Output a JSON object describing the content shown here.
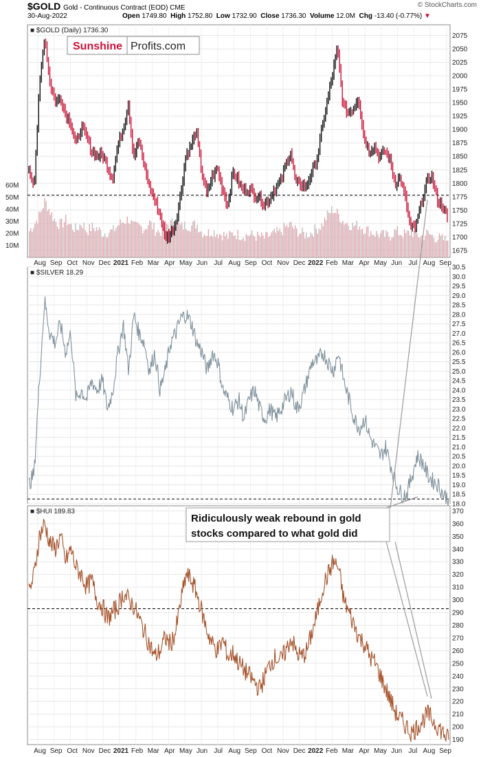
{
  "header": {
    "symbol": "$GOLD",
    "description": "Gold - Continuous Contract (EOD) CME",
    "date": "30-Aug-2022",
    "open_label": "Open",
    "open": "1749.80",
    "high_label": "High",
    "high": "1752.80",
    "low_label": "Low",
    "low": "1732.90",
    "close_label": "Close",
    "close": "1736.30",
    "volume_label": "Volume",
    "volume": "12.0M",
    "chg_label": "Chg",
    "chg": "-13.40 (-0.77%)",
    "credit": "© StockCharts.com"
  },
  "watermark": {
    "part1": "Sunshine",
    "part2": "Profits.com"
  },
  "annotation": {
    "line1": "Ridiculously weak rebound in gold",
    "line2": "stocks compared to what gold did"
  },
  "colors": {
    "up": "#111111",
    "down": "#cc1236",
    "silver": "#7f919c",
    "hui": "#a5522a",
    "volume": "#e3a3ab",
    "volume_alt": "#bdbdbd"
  },
  "chart_data": [
    {
      "type": "line",
      "name": "gold",
      "legend": "$GOLD (Daily) 1736.30",
      "ylim": [
        1662,
        2095
      ],
      "yticks": [
        2075,
        2050,
        2025,
        2000,
        1975,
        1950,
        1925,
        1900,
        1875,
        1850,
        1825,
        1800,
        1775,
        1750,
        1725,
        1700,
        1675
      ],
      "reference_line": 1778,
      "x_labels": [
        "Aug",
        "Sep",
        "Oct",
        "Nov",
        "Dec",
        "2021",
        "Feb",
        "Mar",
        "Apr",
        "May",
        "Jun",
        "Jul",
        "Aug",
        "Sep",
        "Oct",
        "Nov",
        "Dec",
        "2022",
        "Feb",
        "Mar",
        "Apr",
        "May",
        "Jun",
        "Jul",
        "Aug",
        "Sep"
      ],
      "values": [
        1820,
        1800,
        1975,
        2075,
        1990,
        1950,
        1960,
        1930,
        1915,
        1870,
        1905,
        1885,
        1860,
        1850,
        1855,
        1830,
        1810,
        1870,
        1900,
        1950,
        1850,
        1880,
        1835,
        1795,
        1770,
        1745,
        1700,
        1705,
        1725,
        1780,
        1850,
        1870,
        1900,
        1820,
        1780,
        1810,
        1830,
        1790,
        1760,
        1820,
        1805,
        1785,
        1790,
        1780,
        1775,
        1760,
        1770,
        1790,
        1800,
        1830,
        1860,
        1800,
        1800,
        1790,
        1820,
        1840,
        1900,
        1950,
        2000,
        2050,
        1950,
        1930,
        1940,
        1960,
        1890,
        1860,
        1870,
        1850,
        1860,
        1845,
        1800,
        1810,
        1770,
        1715,
        1720,
        1760,
        1800,
        1815,
        1770,
        1760,
        1736
      ],
      "volume": {
        "yticks_labels": [
          "60M",
          "50M",
          "40M",
          "30M",
          "20M",
          "10M"
        ],
        "yticks_values": [
          60,
          50,
          40,
          30,
          20,
          10
        ],
        "ymax": 68,
        "values": [
          22,
          28,
          35,
          47,
          38,
          30,
          27,
          31,
          26,
          23,
          29,
          22,
          25,
          24,
          20,
          21,
          22,
          27,
          30,
          32,
          25,
          26,
          24,
          29,
          23,
          21,
          27,
          28,
          30,
          25,
          27,
          26,
          28,
          21,
          20,
          22,
          20,
          19,
          17,
          20,
          19,
          18,
          19,
          18,
          17,
          16,
          18,
          20,
          21,
          25,
          27,
          22,
          20,
          19,
          21,
          24,
          27,
          35,
          40,
          36,
          30,
          28,
          26,
          27,
          24,
          22,
          20,
          19,
          18,
          18,
          22,
          20,
          19,
          21,
          19,
          17,
          20,
          18,
          16,
          15,
          14
        ]
      }
    },
    {
      "type": "line",
      "name": "silver",
      "legend": "$SILVER 18.29",
      "ylim": [
        18.0,
        30.5
      ],
      "yticks": [
        30.5,
        30.0,
        29.5,
        29.0,
        28.5,
        28.0,
        27.5,
        27.0,
        26.5,
        26.0,
        25.5,
        25.0,
        24.5,
        24.0,
        23.5,
        23.0,
        22.5,
        22.0,
        21.5,
        21.0,
        20.5,
        20.0,
        19.5,
        19.0,
        18.5,
        18.0
      ],
      "reference_line": 18.25,
      "values": [
        19.0,
        19.6,
        24.5,
        28.7,
        27.0,
        26.5,
        27.5,
        26.0,
        27.0,
        23.5,
        24.0,
        23.5,
        24.5,
        24.0,
        24.5,
        23.0,
        24.0,
        26.0,
        27.5,
        25.0,
        28.0,
        27.0,
        26.5,
        25.0,
        26.0,
        24.0,
        25.0,
        26.5,
        27.0,
        27.8,
        28.0,
        27.5,
        26.5,
        26.0,
        25.0,
        26.0,
        25.5,
        24.0,
        23.5,
        23.0,
        23.5,
        22.5,
        23.5,
        24.0,
        23.0,
        22.5,
        23.0,
        22.5,
        23.0,
        23.5,
        24.0,
        23.0,
        23.5,
        24.5,
        25.5,
        25.5,
        26.0,
        25.5,
        25.0,
        26.0,
        24.5,
        23.5,
        22.5,
        22.0,
        22.5,
        21.5,
        21.0,
        20.5,
        21.0,
        20.0,
        19.0,
        18.5,
        18.5,
        19.5,
        20.5,
        20.2,
        19.5,
        19.2,
        19.0,
        18.5,
        18.29
      ]
    },
    {
      "type": "line",
      "name": "hui",
      "legend": "$HUI 189.83",
      "ylim": [
        186,
        374
      ],
      "yticks": [
        370,
        360,
        350,
        340,
        330,
        320,
        310,
        300,
        290,
        280,
        270,
        260,
        250,
        240,
        230,
        220,
        210,
        200,
        190
      ],
      "reference_line": 293,
      "values": [
        305,
        320,
        350,
        360,
        345,
        340,
        350,
        330,
        340,
        325,
        320,
        310,
        315,
        300,
        295,
        285,
        290,
        295,
        305,
        300,
        295,
        285,
        275,
        265,
        255,
        260,
        270,
        265,
        275,
        300,
        320,
        315,
        305,
        290,
        275,
        265,
        260,
        268,
        255,
        258,
        250,
        245,
        240,
        235,
        230,
        240,
        250,
        255,
        252,
        260,
        270,
        258,
        255,
        260,
        275,
        290,
        310,
        320,
        330,
        325,
        300,
        290,
        280,
        270,
        265,
        255,
        250,
        240,
        230,
        220,
        210,
        205,
        200,
        195,
        200,
        205,
        210,
        205,
        200,
        195,
        189.83
      ]
    }
  ]
}
